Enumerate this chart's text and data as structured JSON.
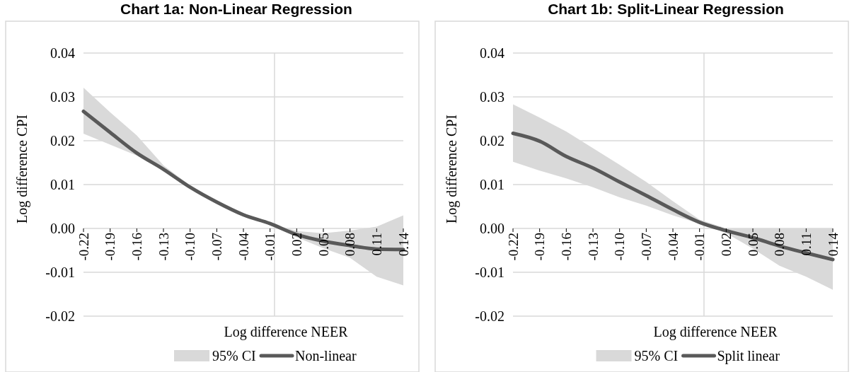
{
  "chart_data": [
    {
      "type": "line",
      "title": "Chart 1a: Non-Linear Regression",
      "xlabel": "Log difference NEER",
      "ylabel": "Log difference CPI",
      "x": [
        -0.22,
        -0.19,
        -0.16,
        -0.13,
        -0.1,
        -0.07,
        -0.04,
        -0.01,
        0.02,
        0.05,
        0.08,
        0.11,
        0.14
      ],
      "series": [
        {
          "name": "Non-linear",
          "type": "line",
          "color": "#595959",
          "values": [
            0.0267,
            0.0219,
            0.0172,
            0.0135,
            0.0094,
            0.006,
            0.0031,
            0.0011,
            -0.0014,
            -0.0029,
            -0.0039,
            -0.0047,
            -0.0048
          ],
          "lower": [
            0.0216,
            0.0191,
            0.0166,
            0.0132,
            0.0093,
            0.0058,
            0.0027,
            0.0009,
            -0.002,
            -0.0045,
            -0.0067,
            -0.011,
            -0.013
          ],
          "upper": [
            0.0321,
            0.0265,
            0.0212,
            0.0144,
            0.0098,
            0.0063,
            0.0035,
            0.0012,
            -0.0006,
            -0.0011,
            -0.0005,
            0.0004,
            0.003
          ]
        }
      ],
      "annotations": [
        "95% CI"
      ],
      "xlim": [
        -0.22,
        0.14
      ],
      "xticks": [
        -0.22,
        -0.19,
        -0.16,
        -0.13,
        {
          "value": -0.1,
          "label": "-0.10"
        },
        -0.07,
        -0.04,
        -0.01,
        0.02,
        0.05,
        0.08,
        0.11,
        0.14
      ],
      "ylim": [
        -0.02,
        0.04
      ],
      "yticks": [
        -0.02,
        -0.01,
        {
          "value": 0,
          "label": "0.00"
        },
        0.01,
        0.02,
        0.03,
        0.04
      ],
      "ref_lines": [
        {
          "axis": "x",
          "value": -0.005,
          "color": "#d9d9d9"
        }
      ],
      "grid": "y",
      "legend": "bottom",
      "marker": "none",
      "line_style": "solid"
    },
    {
      "type": "line",
      "title": "Chart 1b: Split-Linear Regression",
      "xlabel": "Log difference NEER",
      "ylabel": "Log difference CPI",
      "x": [
        -0.22,
        -0.19,
        -0.16,
        -0.13,
        -0.1,
        -0.07,
        -0.04,
        -0.01,
        0.02,
        0.05,
        0.08,
        0.11,
        0.14
      ],
      "series": [
        {
          "name": "Split linear",
          "type": "line",
          "color": "#595959",
          "values": [
            0.0217,
            0.0199,
            0.0164,
            0.0138,
            0.0106,
            0.0075,
            0.0043,
            0.0014,
            -0.0005,
            -0.0021,
            -0.004,
            -0.0056,
            -0.0071
          ],
          "lower": [
            0.0152,
            0.0132,
            0.0114,
            0.0094,
            0.0071,
            0.0052,
            0.003,
            0.0011,
            -0.0011,
            -0.0046,
            -0.0085,
            -0.011,
            -0.014
          ],
          "upper": [
            0.0283,
            0.0253,
            0.0221,
            0.0183,
            0.0145,
            0.0106,
            0.0062,
            0.002,
            0,
            0,
            0,
            0,
            0
          ]
        }
      ],
      "annotations": [
        "95% CI"
      ],
      "xlim": [
        -0.22,
        0.14
      ],
      "xticks": [
        -0.22,
        -0.19,
        -0.16,
        -0.13,
        {
          "value": -0.1,
          "label": "-0.10"
        },
        -0.07,
        -0.04,
        -0.01,
        0.02,
        0.05,
        0.08,
        0.11,
        0.14
      ],
      "ylim": [
        -0.02,
        0.04
      ],
      "yticks": [
        -0.02,
        -0.01,
        {
          "value": 0,
          "label": "0.00"
        },
        0.01,
        0.02,
        0.03,
        0.04
      ],
      "ref_lines": [
        {
          "axis": "x",
          "value": -0.005,
          "color": "#d9d9d9"
        }
      ],
      "grid": "y",
      "legend": "bottom",
      "marker": "none",
      "line_style": "solid"
    }
  ]
}
